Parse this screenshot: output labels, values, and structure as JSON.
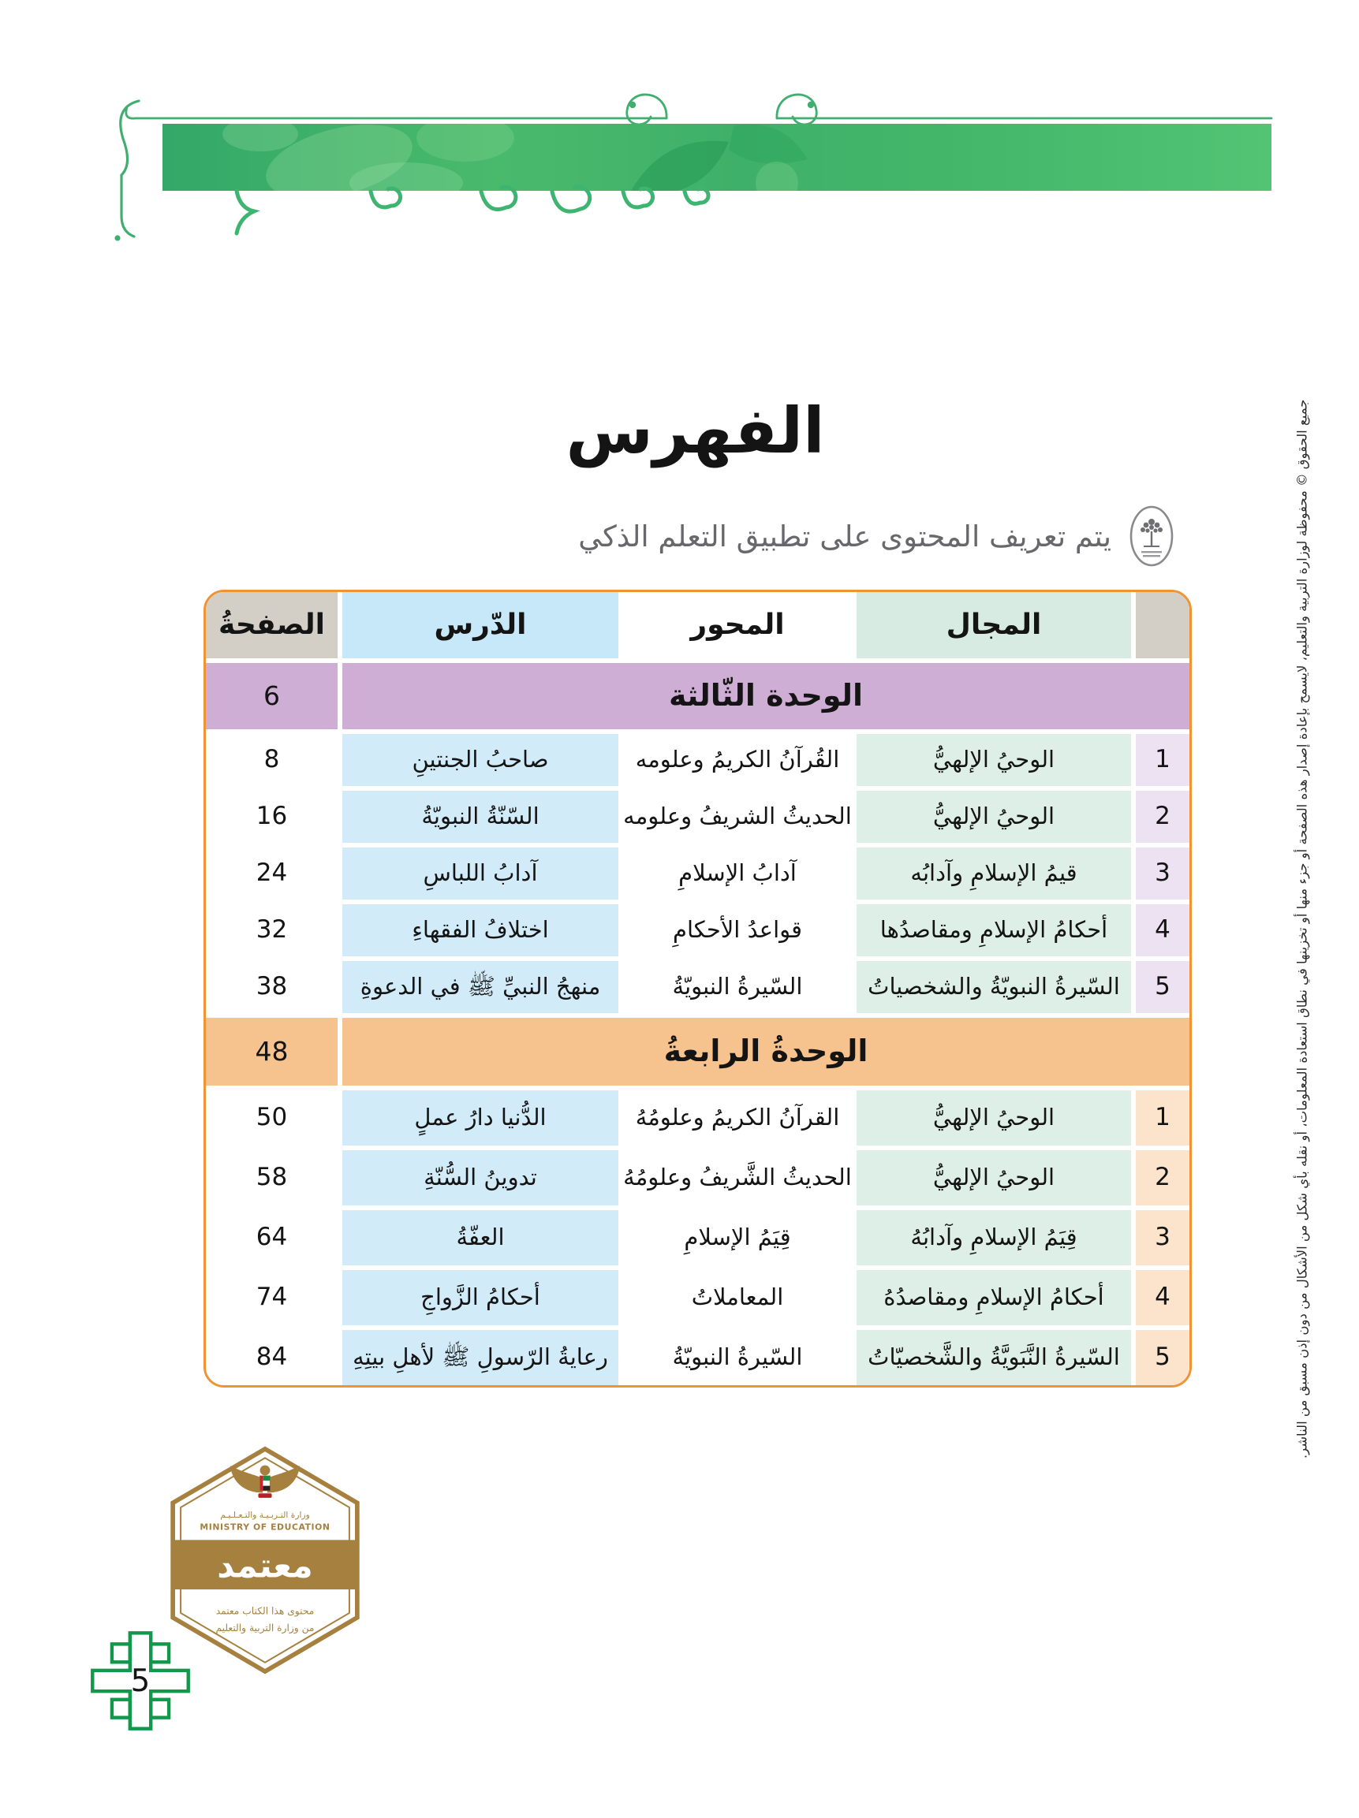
{
  "page": {
    "number": "5",
    "title": "الفهرس",
    "subtitle": "يتم تعريف المحتوى على تطبيق التعلم الذكي",
    "copyright": "جميع الحقوق © محفوظة لوزارة التربية والتعليم، لايسمح بإعادة إصدار هذه الصفحة أو جزء منها أو تخزينها في نطاق استعادة المعلومات، أو نقله بأي شكل من الأشكال من دون إذن مسبق من الناشر."
  },
  "icons": {
    "smart_learning_app": "tree-in-oval-icon",
    "top_banner": "green-arabesque-band",
    "page_marker": "islamic-cross-motif"
  },
  "table": {
    "headers": {
      "page": "الصفحةُ",
      "lesson": "الدّرس",
      "axis": "المحور",
      "domain": "المجال"
    },
    "units": [
      {
        "name": "الوحدة الثّالثة",
        "page": "6",
        "theme": "u3",
        "rows": [
          {
            "num": "1",
            "domain": "الوحيُ الإلهيُّ",
            "axis": "القُرآنُ الكريمُ وعلومه",
            "lesson": "صاحبُ الجنتينِ",
            "page": "8"
          },
          {
            "num": "2",
            "domain": "الوحيُ الإلهيُّ",
            "axis": "الحديثُ الشريفُ وعلومه",
            "lesson": "السّنّةُ النبويّةُ",
            "page": "16"
          },
          {
            "num": "3",
            "domain": "قيمُ الإسلامِ وآدابُه",
            "axis": "آدابُ الإسلامِ",
            "lesson": "آدابُ اللباسِ",
            "page": "24"
          },
          {
            "num": "4",
            "domain": "أحكامُ الإسلامِ ومقاصدُها",
            "axis": "قواعدُ الأحكامِ",
            "lesson": "اختلافُ الفقهاءِ",
            "page": "32"
          },
          {
            "num": "5",
            "domain": "السّيرةُ النبويّةُ والشخصياتُ",
            "axis": "السّيرةُ النبويّةُ",
            "lesson": "منهجُ النبيِّ ﷺ في الدعوةِ",
            "page": "38"
          }
        ]
      },
      {
        "name": "الوحدةُ الرابعةُ",
        "page": "48",
        "theme": "u4",
        "rows": [
          {
            "num": "1",
            "domain": "الوحيُ الإلهيُّ",
            "axis": "القرآنُ الكريمُ وعلومُهُ",
            "lesson": "الدُّنيا دارُ عملٍ",
            "page": "50"
          },
          {
            "num": "2",
            "domain": "الوحيُ الإلهيُّ",
            "axis": "الحديثُ الشَّريفُ وعلومُهُ",
            "lesson": "تدوينُ السُّنّةِ",
            "page": "58"
          },
          {
            "num": "3",
            "domain": "قِيَمُ الإسلامِ وآدابُهُ",
            "axis": "قِيَمُ الإسلامِ",
            "lesson": "العفّةُ",
            "page": "64"
          },
          {
            "num": "4",
            "domain": "أحكامُ الإسلامِ ومقاصدُهُ",
            "axis": "المعاملاتُ",
            "lesson": "أحكامُ الزَّواجِ",
            "page": "74"
          },
          {
            "num": "5",
            "domain": "السّيرةُ النَّبَويَّةُ والشَّخصيّاتُ",
            "axis": "السّيرةُ النبويّةُ",
            "lesson": "رعايةُ الرّسولِ ﷺ لأهلِ بيتِهِ",
            "page": "84"
          }
        ]
      }
    ]
  },
  "badge": {
    "ministry_ar": "وزارة التـربـيـة والتـعـلـيـم",
    "ministry_en": "MINISTRY OF EDUCATION",
    "stamp": "معتمد",
    "note_line1": "محتوى هذا الكتاب معتمد",
    "note_line2": "من وزارة التربية والتعليم"
  },
  "colors": {
    "table_border_orange": "#ef9434",
    "header_tan": "#d3cfc7",
    "header_mint": "#d8ebe2",
    "header_blue": "#c7e8f8",
    "row_mint": "#ddefe7",
    "row_blue": "#d2ebf8",
    "unit3_purple": "#cfaed6",
    "unit3_num": "#ece2f1",
    "unit4_orange": "#f6c28d",
    "unit4_num": "#fbe4cb",
    "banner_green_dark": "#33a868",
    "banner_green_light": "#52c474",
    "badge_brown": "#a6803f",
    "motif_green": "#11984b",
    "subtitle_gray": "#67676c"
  }
}
